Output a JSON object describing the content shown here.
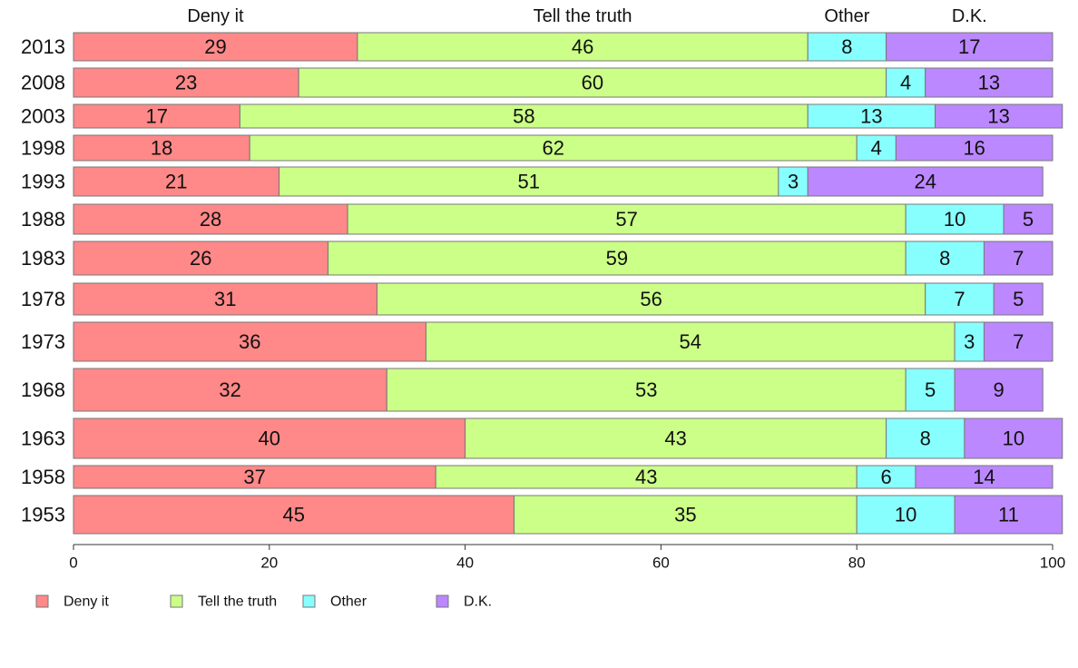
{
  "chart_data": {
    "type": "bar",
    "orientation": "horizontal",
    "stacked": true,
    "categories": [
      "2013",
      "2008",
      "2003",
      "1998",
      "1993",
      "1988",
      "1983",
      "1978",
      "1973",
      "1968",
      "1963",
      "1958",
      "1953"
    ],
    "series": [
      {
        "name": "Deny it",
        "color": "#ff8888",
        "values": [
          29,
          23,
          17,
          18,
          21,
          28,
          26,
          31,
          36,
          32,
          40,
          37,
          45
        ]
      },
      {
        "name": "Tell the truth",
        "color": "#ccff88",
        "values": [
          46,
          60,
          58,
          62,
          51,
          57,
          59,
          56,
          54,
          53,
          43,
          43,
          35
        ]
      },
      {
        "name": "Other",
        "color": "#88ffff",
        "values": [
          8,
          4,
          13,
          4,
          3,
          10,
          8,
          7,
          3,
          5,
          8,
          6,
          10
        ]
      },
      {
        "name": "D.K.",
        "color": "#bb88ff",
        "values": [
          17,
          13,
          13,
          16,
          24,
          5,
          7,
          5,
          7,
          9,
          10,
          14,
          11
        ]
      }
    ],
    "top_labels": [
      "Deny it",
      "Tell the truth",
      "Other",
      "D.K."
    ],
    "xlim": [
      0,
      100
    ],
    "xticks": [
      0,
      20,
      40,
      60,
      80,
      100
    ],
    "grid": false,
    "legend_position": "bottom-left"
  }
}
